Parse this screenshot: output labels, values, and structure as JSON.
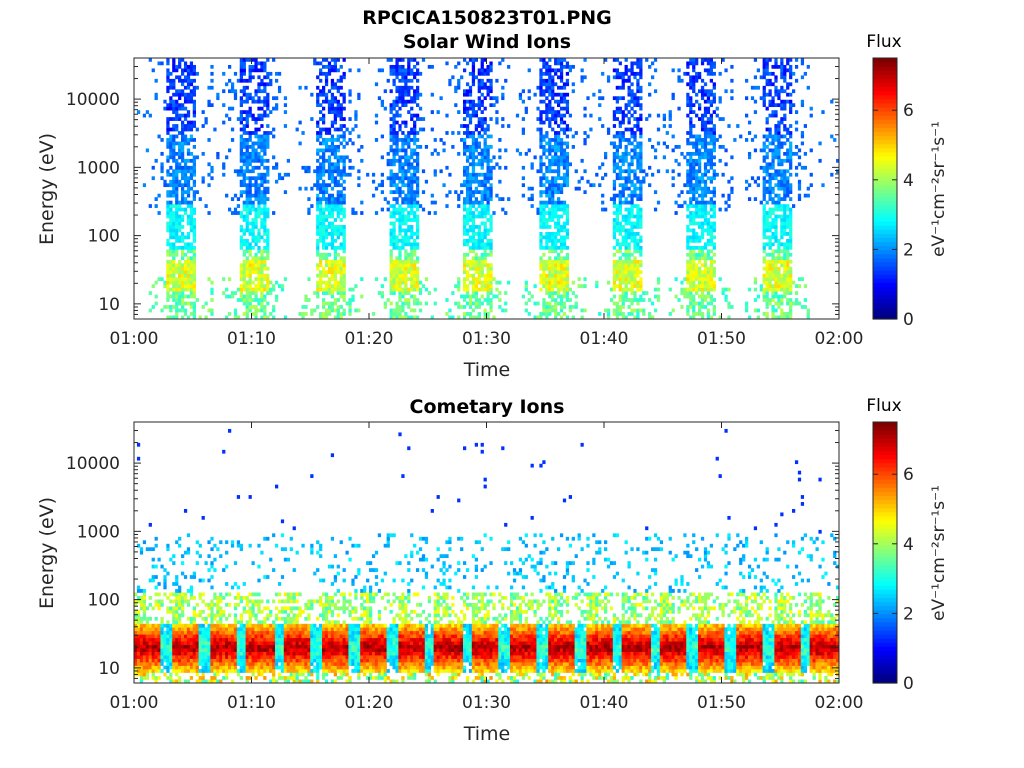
{
  "figure_title": "RPCICA150823T01.PNG",
  "colormap": "jet",
  "colorbar": {
    "title": "Flux",
    "label": "eV⁻¹cm⁻²sr⁻¹s⁻¹",
    "ticks": [
      "0",
      "2",
      "4",
      "6"
    ],
    "range": [
      0,
      7.5
    ]
  },
  "chart_data": [
    {
      "type": "heatmap",
      "title": "Solar Wind Ions",
      "xlabel": "Time",
      "ylabel": "Energy (eV)",
      "x_ticks": [
        "01:00",
        "01:10",
        "01:20",
        "01:30",
        "01:40",
        "01:50",
        "02:00"
      ],
      "y_ticks": [
        "10",
        "100",
        "1000",
        "10000"
      ],
      "x_range_min": [
        0,
        60
      ],
      "y_range_eV": [
        6,
        40000
      ],
      "y_scale": "log",
      "description_values": {
        "burst_centers_min": [
          4,
          10.3,
          16.7,
          23,
          29.3,
          35.7,
          42,
          48.3,
          54.7
        ],
        "burst_width_min": 2.6,
        "low_energy_peak_eV": 25,
        "low_energy_peak_flux": 5,
        "high_energy_flux": 1.5,
        "mid_energy_flux": 2.5
      }
    },
    {
      "type": "heatmap",
      "title": "Cometary Ions",
      "xlabel": "Time",
      "ylabel": "Energy (eV)",
      "x_ticks": [
        "01:00",
        "01:10",
        "01:20",
        "01:30",
        "01:40",
        "01:50",
        "02:00"
      ],
      "y_ticks": [
        "10",
        "100",
        "1000",
        "10000"
      ],
      "x_range_min": [
        0,
        60
      ],
      "y_range_eV": [
        6,
        40000
      ],
      "y_scale": "log",
      "description_values": {
        "band_center_eV": 20,
        "band_peak_flux": 7.2,
        "period_min": 3.2,
        "sparse_high_energy_flux": 2
      }
    }
  ]
}
